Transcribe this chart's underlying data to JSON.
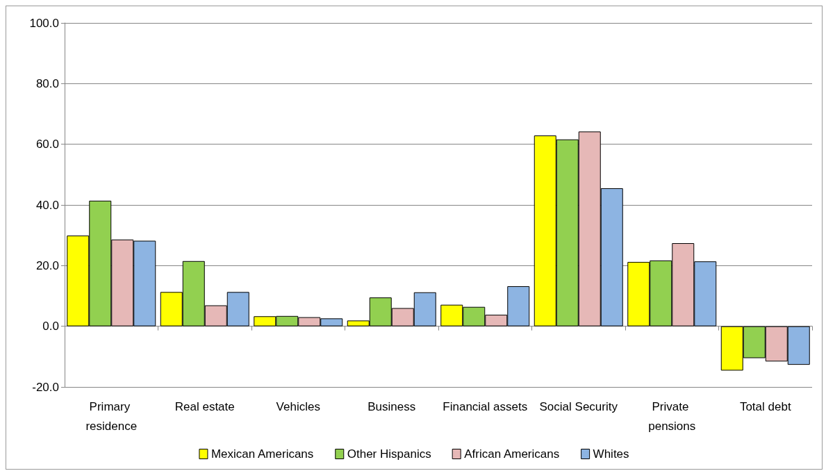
{
  "chart_data": {
    "type": "bar",
    "categories": [
      "Primary residence",
      "Real estate",
      "Vehicles",
      "Business",
      "Financial assets",
      "Social Security",
      "Private pensions",
      "Total debt"
    ],
    "series": [
      {
        "name": "Mexican Americans",
        "color": "#ffff00",
        "values": [
          29.9,
          11.3,
          3.3,
          1.9,
          7.1,
          62.9,
          21.2,
          -14.6
        ]
      },
      {
        "name": "Other Hispanics",
        "color": "#92d050",
        "values": [
          41.4,
          21.5,
          3.4,
          9.5,
          6.4,
          61.6,
          21.7,
          -10.5
        ]
      },
      {
        "name": "African Americans",
        "color": "#e6b8b7",
        "values": [
          28.6,
          6.9,
          3.0,
          6.0,
          3.8,
          64.2,
          27.4,
          -11.6
        ]
      },
      {
        "name": "Whites",
        "color": "#8db4e2",
        "values": [
          28.2,
          11.3,
          2.6,
          11.2,
          13.2,
          45.5,
          21.4,
          -12.7
        ]
      }
    ],
    "ylim": [
      -20,
      100
    ],
    "yticks": [
      {
        "value": -20,
        "label": "-20.0"
      },
      {
        "value": 0,
        "label": "0.0"
      },
      {
        "value": 20,
        "label": "20.0"
      },
      {
        "value": 40,
        "label": "40.0"
      },
      {
        "value": 60,
        "label": "60.0"
      },
      {
        "value": 80,
        "label": "80.0"
      },
      {
        "value": 100,
        "label": "100.0"
      }
    ],
    "grid": "y",
    "legend": "bottom"
  }
}
